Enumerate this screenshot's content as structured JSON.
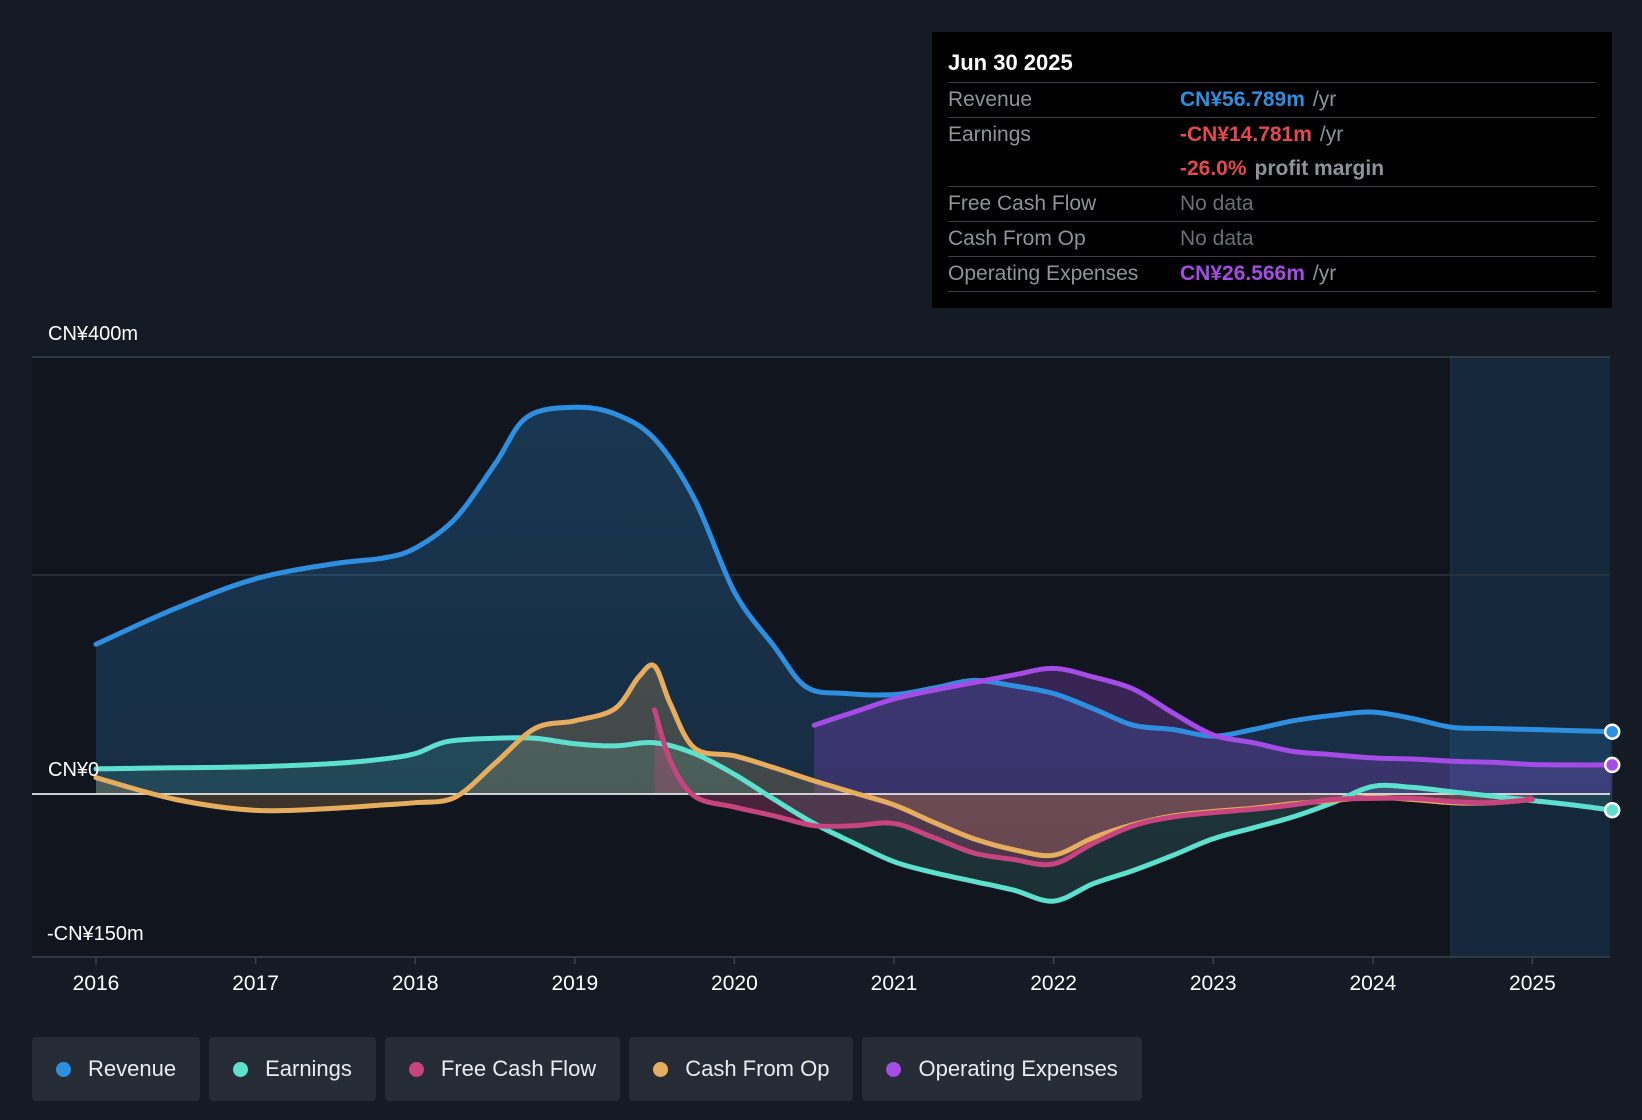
{
  "tooltip": {
    "date": "Jun 30 2025",
    "revenue_label": "Revenue",
    "revenue_value": "CN¥56.789m",
    "earnings_label": "Earnings",
    "earnings_value": "-CN¥14.781m",
    "margin_value": "-26.0%",
    "margin_label": "profit margin",
    "fcf_label": "Free Cash Flow",
    "fcf_value": "No data",
    "cfo_label": "Cash From Op",
    "cfo_value": "No data",
    "opex_label": "Operating Expenses",
    "opex_value": "CN¥26.566m",
    "unit": "/yr"
  },
  "legend": [
    {
      "label": "Revenue",
      "color": "#2e8fe0"
    },
    {
      "label": "Earnings",
      "color": "#5ee0cf"
    },
    {
      "label": "Free Cash Flow",
      "color": "#c7447e"
    },
    {
      "label": "Cash From Op",
      "color": "#e6ad5e"
    },
    {
      "label": "Operating Expenses",
      "color": "#a54be6"
    }
  ],
  "chart_data": {
    "type": "area",
    "ylim": [
      -150,
      400
    ],
    "ytick_labels": [
      "CN¥400m",
      "CN¥0",
      "-CN¥150m"
    ],
    "xtick_labels": [
      "2016",
      "2017",
      "2018",
      "2019",
      "2020",
      "2021",
      "2022",
      "2023",
      "2024",
      "2025"
    ],
    "grid": true,
    "series": [
      {
        "name": "Revenue",
        "color": "#2e8fe0",
        "x": [
          2016.0,
          2016.5,
          2017.0,
          2017.5,
          2017.8,
          2018.0,
          2018.25,
          2018.5,
          2018.7,
          2019.0,
          2019.25,
          2019.5,
          2019.75,
          2020.0,
          2020.25,
          2020.45,
          2020.7,
          2021.0,
          2021.25,
          2021.5,
          2021.75,
          2022.0,
          2022.25,
          2022.5,
          2022.75,
          2023.0,
          2023.25,
          2023.5,
          2023.75,
          2024.0,
          2024.25,
          2024.5,
          2024.75,
          2025.0,
          2025.25,
          2025.5
        ],
        "y": [
          137,
          170,
          197,
          211,
          216,
          225,
          252,
          302,
          345,
          354,
          348,
          325,
          270,
          185,
          135,
          98,
          92,
          91,
          97,
          104,
          99,
          92,
          78,
          63,
          59,
          53,
          59,
          67,
          72,
          75,
          69,
          61,
          60,
          59,
          58,
          57
        ]
      },
      {
        "name": "Earnings",
        "color": "#5ee0cf",
        "x": [
          2016.0,
          2016.5,
          2017.0,
          2017.5,
          2017.8,
          2018.0,
          2018.2,
          2018.5,
          2018.75,
          2019.0,
          2019.25,
          2019.5,
          2019.75,
          2020.0,
          2020.25,
          2020.5,
          2020.75,
          2021.0,
          2021.25,
          2021.5,
          2021.75,
          2022.0,
          2022.25,
          2022.5,
          2022.75,
          2023.0,
          2023.25,
          2023.5,
          2023.75,
          2024.0,
          2024.25,
          2024.5,
          2024.75,
          2025.0,
          2025.25,
          2025.5
        ],
        "y": [
          23,
          24,
          25,
          28,
          32,
          37,
          48,
          51,
          51,
          46,
          44,
          47,
          37,
          18,
          -5,
          -27,
          -45,
          -62,
          -72,
          -80,
          -88,
          -98,
          -82,
          -70,
          -56,
          -41,
          -31,
          -21,
          -8,
          7,
          6,
          2,
          -2,
          -6,
          -10,
          -14.8
        ]
      },
      {
        "name": "Free Cash Flow",
        "color": "#c7447e",
        "x": [
          2019.5,
          2019.6,
          2019.75,
          2020.0,
          2020.25,
          2020.5,
          2020.75,
          2021.0,
          2021.25,
          2021.5,
          2021.75,
          2022.0,
          2022.25,
          2022.5,
          2022.75,
          2023.0,
          2023.25,
          2023.5,
          2023.75,
          2024.0,
          2024.25,
          2024.5,
          2024.75,
          2025.0
        ],
        "y": [
          77,
          30,
          -2,
          -12,
          -20,
          -29,
          -29,
          -27,
          -40,
          -54,
          -60,
          -64,
          -45,
          -29,
          -21,
          -17,
          -14,
          -10,
          -5,
          -4,
          -4,
          -7,
          -8,
          -5
        ]
      },
      {
        "name": "Cash From Op",
        "color": "#e6ad5e",
        "x": [
          2016.0,
          2016.5,
          2017.0,
          2017.5,
          2017.8,
          2018.0,
          2018.25,
          2018.5,
          2018.75,
          2019.0,
          2019.25,
          2019.4,
          2019.5,
          2019.6,
          2019.75,
          2020.0,
          2020.25,
          2020.5,
          2020.75,
          2021.0,
          2021.25,
          2021.5,
          2021.75,
          2022.0,
          2022.25,
          2022.5,
          2022.75,
          2023.0,
          2023.25,
          2023.5,
          2023.75,
          2024.0,
          2024.25,
          2024.5,
          2024.75,
          2025.0
        ],
        "y": [
          15,
          -5,
          -15,
          -13,
          -10,
          -8,
          -3,
          28,
          60,
          67,
          78,
          107,
          117,
          82,
          42,
          35,
          24,
          12,
          1,
          -10,
          -26,
          -41,
          -51,
          -56,
          -40,
          -28,
          -20,
          -16,
          -13,
          -9,
          -6,
          -3,
          -5,
          -8,
          -8,
          -5
        ]
      },
      {
        "name": "Operating Expenses",
        "color": "#a54be6",
        "x": [
          2020.5,
          2020.75,
          2021.0,
          2021.25,
          2021.5,
          2021.75,
          2022.0,
          2022.25,
          2022.5,
          2022.75,
          2023.0,
          2023.25,
          2023.5,
          2023.75,
          2024.0,
          2024.25,
          2024.5,
          2024.75,
          2025.0,
          2025.25,
          2025.5
        ],
        "y": [
          63,
          75,
          87,
          95,
          102,
          109,
          115,
          107,
          96,
          74,
          54,
          47,
          39,
          36,
          33,
          32,
          30,
          29,
          27,
          26.6,
          26.6
        ]
      }
    ]
  }
}
